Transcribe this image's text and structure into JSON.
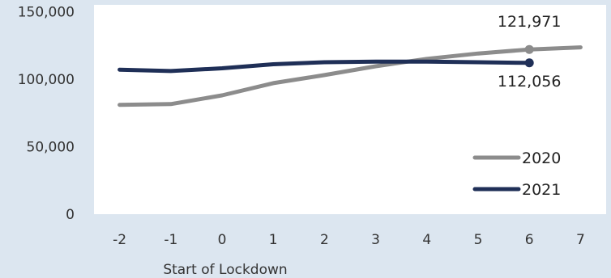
{
  "chart_data": {
    "type": "line",
    "title": "",
    "xlabel": "Start of Lockdown",
    "ylabel": "",
    "x": [
      -2,
      -1,
      0,
      1,
      2,
      3,
      4,
      5,
      6,
      7
    ],
    "x_tick_labels": [
      "-2",
      "-1",
      "0",
      "1",
      "2",
      "3",
      "4",
      "5",
      "6",
      "7"
    ],
    "y_ticks": [
      0,
      50000,
      100000,
      150000
    ],
    "y_tick_labels": [
      "0",
      "50,000",
      "100,000",
      "150,000"
    ],
    "ylim": [
      0,
      155000
    ],
    "xlim": [
      -2.5,
      7.5
    ],
    "grid": false,
    "legend_position": "bottom-right",
    "series": [
      {
        "name": "2020",
        "color": "#8c8c8c",
        "x": [
          -2,
          -1,
          0,
          1,
          2,
          3,
          4,
          5,
          6,
          7
        ],
        "values": [
          81000,
          81500,
          88000,
          97000,
          103000,
          109500,
          115000,
          119000,
          121971,
          123500
        ],
        "highlight": {
          "x": 6,
          "value": 121971,
          "label": "121,971"
        }
      },
      {
        "name": "2021",
        "color": "#1f2f57",
        "x": [
          -2,
          -1,
          0,
          1,
          2,
          3,
          4,
          5,
          6
        ],
        "values": [
          107000,
          106000,
          108000,
          111000,
          112500,
          113000,
          113000,
          112500,
          112056
        ],
        "highlight": {
          "x": 6,
          "value": 112056,
          "label": "112,056"
        }
      }
    ]
  }
}
